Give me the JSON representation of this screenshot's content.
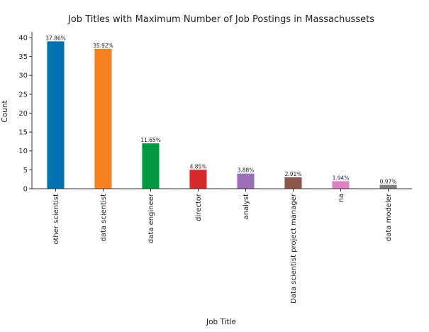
{
  "chart_data": {
    "type": "bar",
    "title": "Job Titles with Maximum Number of Job Postings in Massachussets",
    "xlabel": "Job Title",
    "ylabel": "Count",
    "ylim": [
      0,
      41.5
    ],
    "yticks": [
      0,
      5,
      10,
      15,
      20,
      25,
      30,
      35,
      40
    ],
    "grid": false,
    "categories": [
      "other scientist",
      "data scientist",
      "data engineer",
      "director",
      "analyst",
      "Data scientist project manager",
      "na",
      "data modeler"
    ],
    "values": [
      39,
      37,
      12,
      5,
      4,
      3,
      2,
      1
    ],
    "data_labels": [
      "37.86%",
      "35.92%",
      "11.65%",
      "4.85%",
      "3.88%",
      "2.91%",
      "1.94%",
      "0.97%"
    ],
    "colors": [
      "#0072b2",
      "#f5821f",
      "#009940",
      "#d62b2b",
      "#9b6fba",
      "#8c564b",
      "#e07fc2",
      "#7f7f7f"
    ]
  }
}
